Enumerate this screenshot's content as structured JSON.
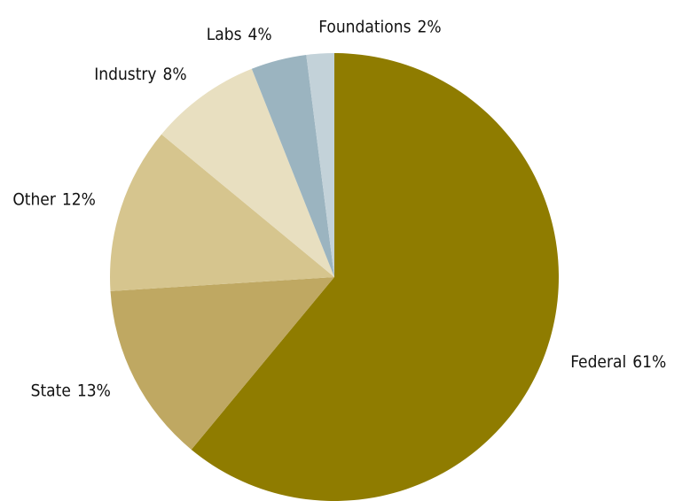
{
  "chart_data": {
    "type": "pie",
    "categories": [
      "Federal",
      "State",
      "Other",
      "Industry",
      "Labs",
      "Foundations"
    ],
    "values": [
      61,
      13,
      12,
      8,
      4,
      2
    ],
    "value_labels": [
      "61%",
      "13%",
      "12%",
      "8%",
      "4%",
      "2%"
    ],
    "colors": [
      "#8f7c00",
      "#bfa862",
      "#d6c58e",
      "#e8dfc0",
      "#9bb4c0",
      "#c3d2d9"
    ]
  }
}
